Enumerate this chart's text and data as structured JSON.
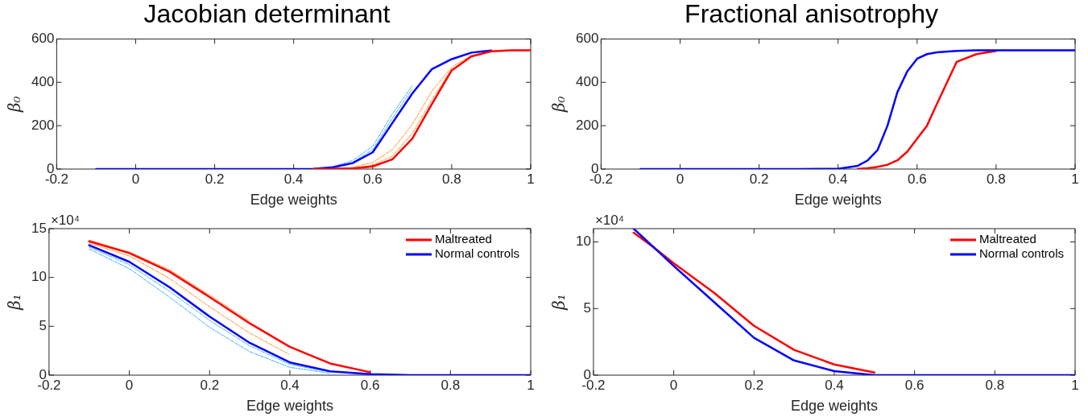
{
  "chart_data": [
    {
      "type": "line",
      "title": "Jacobian determinant",
      "xlabel": "Edge weights",
      "ylabel": "β₀",
      "xlim": [
        -0.2,
        1
      ],
      "xticks": [
        -0.2,
        0,
        0.2,
        0.4,
        0.6,
        0.8,
        1
      ],
      "ylim": [
        0,
        600
      ],
      "yticks": [
        0,
        200,
        400,
        600
      ],
      "grid": false,
      "marker": "none",
      "x": [
        -0.1,
        0,
        0.1,
        0.2,
        0.3,
        0.4,
        0.45,
        0.5,
        0.55,
        0.6,
        0.65,
        0.7,
        0.75,
        0.8,
        0.85,
        0.9,
        0.95,
        1
      ],
      "series": [
        {
          "color": "#33aaff",
          "line_style": "dashed",
          "values": [
            null,
            null,
            null,
            null,
            null,
            null,
            null,
            12,
            40,
            105,
            255,
            385,
            null,
            null,
            null,
            null,
            null,
            null
          ]
        },
        {
          "color": "#33aaff",
          "line_style": "dashed",
          "values": [
            null,
            null,
            null,
            null,
            null,
            null,
            null,
            null,
            32,
            90,
            235,
            370,
            null,
            null,
            null,
            null,
            null,
            null
          ]
        },
        {
          "color": "#ff8c1a",
          "line_style": "dashed",
          "values": [
            null,
            null,
            null,
            null,
            null,
            null,
            null,
            2,
            8,
            30,
            90,
            205,
            360,
            470,
            525,
            null,
            null,
            null
          ]
        },
        {
          "color": "#ff8c1a",
          "line_style": "dashed",
          "values": [
            null,
            null,
            null,
            null,
            null,
            null,
            null,
            null,
            4,
            18,
            60,
            165,
            320,
            462,
            null,
            null,
            null,
            null
          ]
        },
        {
          "color": "#0000ff",
          "line_style": "solid",
          "values": [
            0,
            0,
            0,
            0,
            0,
            0,
            1,
            8,
            28,
            77,
            213,
            348,
            461,
            507,
            537,
            547,
            null,
            null
          ]
        },
        {
          "color": "#ff0000",
          "line_style": "solid",
          "values": [
            null,
            null,
            null,
            null,
            null,
            null,
            0,
            1,
            3,
            12,
            45,
            140,
            300,
            455,
            520,
            543,
            548,
            548
          ]
        }
      ]
    },
    {
      "type": "line",
      "title": "Fractional anisotrophy",
      "xlabel": "Edge weights",
      "ylabel": "β₀",
      "xlim": [
        -0.2,
        1
      ],
      "xticks": [
        -0.2,
        0,
        0.2,
        0.4,
        0.6,
        0.8,
        1
      ],
      "ylim": [
        0,
        600
      ],
      "yticks": [
        0,
        200,
        400,
        600
      ],
      "grid": false,
      "marker": "none",
      "x": [
        -0.1,
        0,
        0.1,
        0.2,
        0.3,
        0.4,
        0.45,
        0.475,
        0.5,
        0.525,
        0.55,
        0.575,
        0.6,
        0.625,
        0.65,
        0.7,
        0.75,
        0.8,
        0.85,
        1
      ],
      "series": [
        {
          "color": "#ff0000",
          "line_style": "solid",
          "values": [
            null,
            null,
            null,
            null,
            null,
            null,
            1,
            4,
            10,
            20,
            40,
            80,
            140,
            200,
            300,
            494,
            530,
            545,
            null,
            null
          ]
        },
        {
          "color": "#0000ff",
          "line_style": "solid",
          "values": [
            0,
            0,
            0,
            0,
            0,
            1,
            15,
            40,
            88,
            200,
            354,
            450,
            509,
            530,
            538,
            545,
            548,
            548,
            548,
            548
          ]
        }
      ]
    },
    {
      "type": "line",
      "xlabel": "Edge weights",
      "ylabel": "β₁",
      "xlim": [
        -0.2,
        1
      ],
      "xticks": [
        -0.2,
        0,
        0.2,
        0.4,
        0.6,
        0.8,
        1
      ],
      "ylim": [
        0,
        15
      ],
      "yticks": [
        0,
        5,
        10,
        15
      ],
      "grid": false,
      "marker": "none",
      "legend": "top right",
      "annotations": [
        "×10⁴"
      ],
      "x": [
        -0.1,
        0,
        0.1,
        0.2,
        0.3,
        0.4,
        0.5,
        0.6,
        0.7,
        0.8,
        1
      ],
      "series": [
        {
          "color": "#33aaff",
          "line_style": "dashed",
          "values": [
            12.9,
            10.9,
            8.0,
            4.9,
            2.4,
            0.8,
            0.2,
            null,
            null,
            null,
            null
          ]
        },
        {
          "color": "#33aaff",
          "line_style": "dashed",
          "values": [
            13.1,
            11.3,
            8.6,
            5.6,
            3.0,
            1.1,
            0.3,
            null,
            null,
            null,
            null
          ]
        },
        {
          "color": "#ff8c1a",
          "line_style": "dashed",
          "values": [
            13.5,
            12.2,
            9.9,
            7.0,
            4.3,
            2.1,
            null,
            null,
            null,
            null,
            null
          ]
        },
        {
          "color": "#ff8c1a",
          "line_style": "dashed",
          "values": [
            13.8,
            12.6,
            10.8,
            8.2,
            5.5,
            null,
            null,
            null,
            null,
            null,
            null
          ]
        },
        {
          "name": "Maltreated",
          "color": "#ff0000",
          "line_style": "solid",
          "values": [
            13.7,
            12.5,
            10.6,
            8.0,
            5.3,
            2.9,
            1.2,
            0.3,
            null,
            null,
            null
          ]
        },
        {
          "name": "Normal controls",
          "color": "#0000ff",
          "line_style": "solid",
          "values": [
            13.3,
            11.6,
            9.0,
            6.0,
            3.3,
            1.3,
            0.4,
            0.1,
            0,
            0,
            0
          ]
        }
      ]
    },
    {
      "type": "line",
      "xlabel": "Edge weights",
      "ylabel": "β₁",
      "xlim": [
        -0.2,
        1
      ],
      "xticks": [
        -0.2,
        0,
        0.2,
        0.4,
        0.6,
        0.8,
        1
      ],
      "ylim": [
        0,
        11
      ],
      "yticks": [
        0,
        5,
        10
      ],
      "grid": false,
      "marker": "none",
      "legend": "top right",
      "annotations": [
        "×10⁴"
      ],
      "x": [
        -0.1,
        -0.05,
        0,
        0.1,
        0.2,
        0.3,
        0.4,
        0.5,
        0.6,
        0.7,
        1
      ],
      "series": [
        {
          "name": "Maltreated",
          "color": "#ff0000",
          "line_style": "solid",
          "values": [
            10.7,
            9.6,
            8.4,
            6.2,
            3.7,
            1.9,
            0.8,
            0.2,
            null,
            null,
            null
          ]
        },
        {
          "name": "Normal controls",
          "color": "#0000ff",
          "line_style": "solid",
          "values": [
            11.0,
            9.6,
            8.2,
            5.5,
            2.8,
            1.1,
            0.3,
            0,
            0,
            0,
            0
          ]
        }
      ]
    }
  ]
}
